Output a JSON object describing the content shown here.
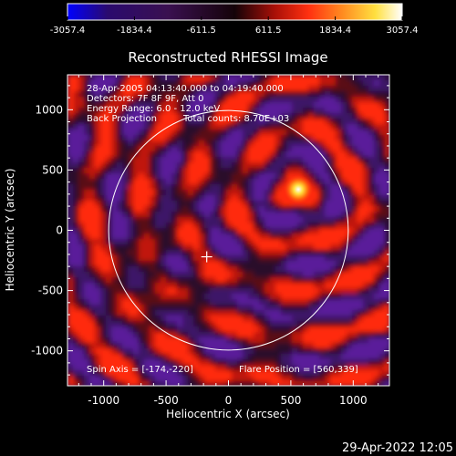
{
  "colorbar": {
    "ticks": [
      "-3057.4",
      "-1834.4",
      "-611.5",
      "611.5",
      "1834.4",
      "3057.4"
    ],
    "colors": [
      "#0000ff",
      "#2a0a6e",
      "#3a1050",
      "#140308",
      "#aa1008",
      "#ff3010",
      "#ff8a20",
      "#ffe040",
      "#ffffff"
    ]
  },
  "plot": {
    "title": "Reconstructed RHESSI Image",
    "info_lines": [
      "28-Apr-2005 04:13:40.000 to 04:19:40.000",
      "Detectors: 7F 8F 9F, Att 0",
      "Energy Range: 6.0 - 12.0 keV"
    ],
    "method": "Back Projection",
    "total_counts": "Total counts: 8.70E+03",
    "spin_axis": "Spin Axis = [-174,-220]",
    "flare_position": "Flare Position = [560,339]",
    "xlabel": "Heliocentric X (arcsec)",
    "ylabel": "Heliocentric Y (arcsec)",
    "xticks": [
      "-1000",
      "-500",
      "0",
      "500",
      "1000"
    ],
    "yticks": [
      "1000",
      "500",
      "0",
      "-500",
      "-1000"
    ],
    "x_range": [
      -1290,
      1290
    ],
    "y_range": [
      -1290,
      1290
    ],
    "solar_disk_radius": 960,
    "spin_axis_xy": [
      -174,
      -220
    ],
    "flare_xy": [
      560,
      339
    ]
  },
  "timestamp": "29-Apr-2022 12:05"
}
